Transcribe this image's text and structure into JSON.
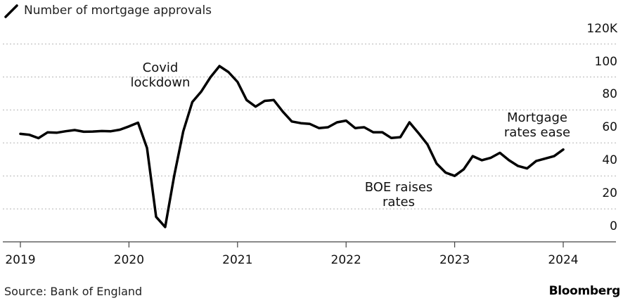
{
  "chart_data": {
    "type": "line",
    "legend": "Number of mortgage approvals",
    "y_unit_suffix": "K",
    "ylim": [
      0,
      120
    ],
    "yticks": [
      0,
      20,
      40,
      60,
      80,
      100,
      120
    ],
    "ytick_labels": [
      "0",
      "20",
      "40",
      "60",
      "80",
      "100",
      "120K"
    ],
    "xticks": [
      2019,
      2020,
      2021,
      2022,
      2023,
      2024
    ],
    "xtick_labels": [
      "2019",
      "2020",
      "2021",
      "2022",
      "2023",
      "2024"
    ],
    "grid": "horizontal dotted",
    "x": [
      "2019-01",
      "2019-02",
      "2019-03",
      "2019-04",
      "2019-05",
      "2019-06",
      "2019-07",
      "2019-08",
      "2019-09",
      "2019-10",
      "2019-11",
      "2019-12",
      "2020-01",
      "2020-02",
      "2020-03",
      "2020-04",
      "2020-05",
      "2020-06",
      "2020-07",
      "2020-08",
      "2020-09",
      "2020-10",
      "2020-11",
      "2020-12",
      "2021-01",
      "2021-02",
      "2021-03",
      "2021-04",
      "2021-05",
      "2021-06",
      "2021-07",
      "2021-08",
      "2021-09",
      "2021-10",
      "2021-11",
      "2021-12",
      "2022-01",
      "2022-02",
      "2022-03",
      "2022-04",
      "2022-05",
      "2022-06",
      "2022-07",
      "2022-08",
      "2022-09",
      "2022-10",
      "2022-11",
      "2022-12",
      "2023-01",
      "2023-02",
      "2023-03",
      "2023-04",
      "2023-05",
      "2023-06",
      "2023-07",
      "2023-08",
      "2023-09",
      "2023-10",
      "2023-11",
      "2023-12",
      "2024-01"
    ],
    "series": [
      {
        "name": "Number of mortgage approvals",
        "values": [
          65.5,
          64.9,
          62.9,
          66.4,
          66.2,
          67.1,
          67.8,
          66.8,
          66.9,
          67.2,
          67.1,
          68.0,
          70.0,
          72.3,
          56.9,
          15.2,
          9.0,
          40.0,
          67.0,
          84.8,
          91.2,
          99.8,
          106.6,
          103.0,
          97.0,
          86.0,
          82.0,
          85.5,
          86.0,
          79.0,
          73.0,
          72.0,
          71.5,
          69.0,
          69.5,
          72.5,
          73.5,
          69.0,
          69.5,
          66.5,
          66.5,
          63.0,
          63.5,
          72.5,
          66.0,
          59.0,
          47.5,
          42.0,
          40.0,
          44.0,
          52.0,
          49.5,
          51.0,
          54.0,
          49.5,
          46.0,
          44.5,
          49.0,
          50.5,
          52.0,
          56.0
        ]
      }
    ],
    "annotations": [
      {
        "lines": [
          "Covid",
          "lockdown"
        ]
      },
      {
        "lines": [
          "BOE raises",
          "rates"
        ]
      },
      {
        "lines": [
          "Mortgage",
          "rates ease"
        ]
      }
    ],
    "colors": {
      "line": "#000000",
      "grid": "#b5b5b5",
      "axis": "#444444"
    }
  },
  "footer": {
    "source": "Source: Bank of England",
    "brand": "Bloomberg"
  }
}
